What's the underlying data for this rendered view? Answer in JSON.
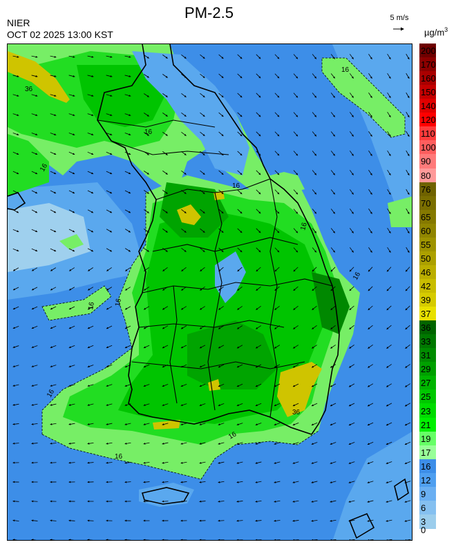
{
  "header": {
    "title": "PM-2.5",
    "agency": "NIER",
    "timestamp": "OCT 02 2025 13:00 KST",
    "wind_scale_label": "5 m/s",
    "unit_base": "µg/m",
    "unit_exp": "3"
  },
  "colorbar": {
    "segments": [
      {
        "label": "200",
        "color": "#6e0000"
      },
      {
        "label": "170",
        "color": "#8c0000"
      },
      {
        "label": "160",
        "color": "#aa0000"
      },
      {
        "label": "150",
        "color": "#c40000"
      },
      {
        "label": "140",
        "color": "#e00000"
      },
      {
        "label": "120",
        "color": "#ff0000"
      },
      {
        "label": "110",
        "color": "#ff3c3c"
      },
      {
        "label": "100",
        "color": "#ff5e5e"
      },
      {
        "label": "90",
        "color": "#ff7a7a"
      },
      {
        "label": "80",
        "color": "#ff9a9a"
      },
      {
        "label": "76",
        "color": "#6f6200"
      },
      {
        "label": "70",
        "color": "#7a6e00"
      },
      {
        "label": "65",
        "color": "#857900"
      },
      {
        "label": "60",
        "color": "#908500"
      },
      {
        "label": "55",
        "color": "#9e9300"
      },
      {
        "label": "50",
        "color": "#aca000"
      },
      {
        "label": "46",
        "color": "#bbae00"
      },
      {
        "label": "42",
        "color": "#c9bd00"
      },
      {
        "label": "39",
        "color": "#d6cb00"
      },
      {
        "label": "37",
        "color": "#e8e000"
      },
      {
        "label": "36",
        "color": "#006400"
      },
      {
        "label": "33",
        "color": "#007800"
      },
      {
        "label": "31",
        "color": "#008c00"
      },
      {
        "label": "29",
        "color": "#00a000"
      },
      {
        "label": "27",
        "color": "#00b400"
      },
      {
        "label": "25",
        "color": "#00c800"
      },
      {
        "label": "23",
        "color": "#00dc00"
      },
      {
        "label": "21",
        "color": "#00f000"
      },
      {
        "label": "19",
        "color": "#66ff66"
      },
      {
        "label": "17",
        "color": "#99ff99"
      },
      {
        "label": "16",
        "color": "#3d8ee8"
      },
      {
        "label": "12",
        "color": "#4f9ff0"
      },
      {
        "label": "9",
        "color": "#6aaff2"
      },
      {
        "label": "6",
        "color": "#85c0f0"
      },
      {
        "label": "3",
        "color": "#9bcdec"
      }
    ],
    "bottom_label": "0"
  },
  "map": {
    "contour_label": "16",
    "contour_label_36": "36",
    "colors": {
      "sea": "#3d8ee8",
      "sea_light": "#5aa8ee",
      "sea_pale": "#9fd0ee",
      "land_light": "#77ee66",
      "land": "#22dd22",
      "land_mid": "#00c400",
      "land_dark": "#00a400",
      "land_darker": "#008800",
      "yellow": "#cfc400",
      "coast": "#000000",
      "admin": "#cfcfcf"
    }
  }
}
